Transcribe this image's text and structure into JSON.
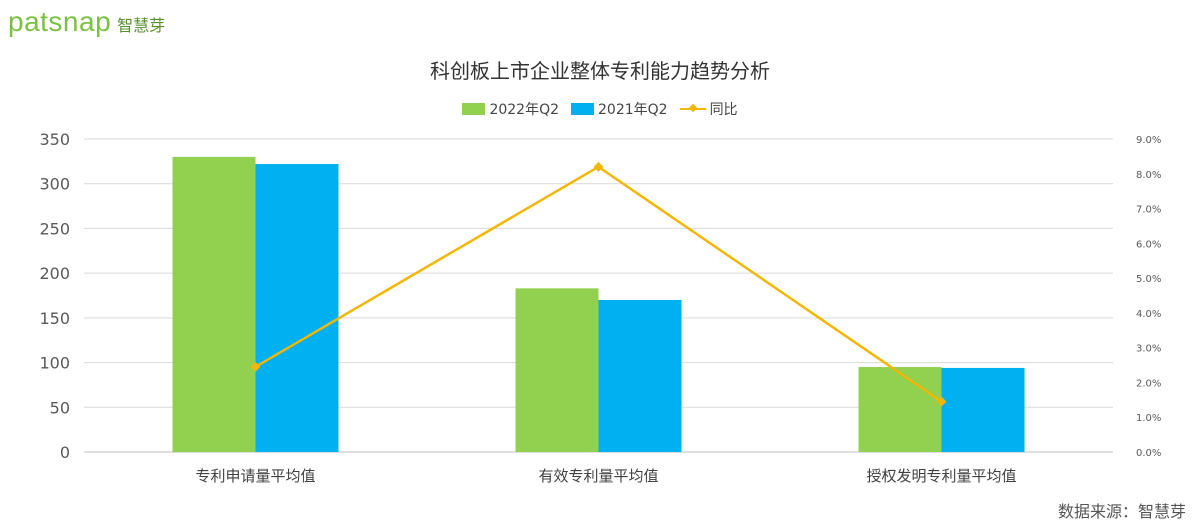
{
  "brand": {
    "logo_word": "patsnap",
    "logo_cn": "智慧芽"
  },
  "source_note": "数据来源：智慧芽",
  "colors": {
    "series_2022": "#92d050",
    "series_2021": "#00b0f0",
    "yoy_line": "#f2b705",
    "grid": "#d9d9d9"
  },
  "chart_data": {
    "type": "bar",
    "title": "科创板上市企业整体专利能力趋势分析",
    "categories": [
      "专利申请量平均值",
      "有效专利量平均值",
      "授权发明专利量平均值"
    ],
    "series": [
      {
        "name": "2022年Q2",
        "type": "bar",
        "axis": "left",
        "values": [
          330,
          183,
          95
        ]
      },
      {
        "name": "2021年Q2",
        "type": "bar",
        "axis": "left",
        "values": [
          322,
          170,
          94
        ]
      },
      {
        "name": "同比",
        "type": "line",
        "axis": "right",
        "values": [
          2.45,
          8.2,
          1.45
        ]
      }
    ],
    "y_left": {
      "min": 0,
      "max": 350,
      "step": 50,
      "ticks": [
        "0",
        "50",
        "100",
        "150",
        "200",
        "250",
        "300",
        "350"
      ]
    },
    "y_right": {
      "min": 0,
      "max": 9,
      "step": 1,
      "ticks": [
        "0.0%",
        "1.0%",
        "2.0%",
        "3.0%",
        "4.0%",
        "5.0%",
        "6.0%",
        "7.0%",
        "8.0%",
        "9.0%"
      ]
    },
    "grid": true,
    "legend_position": "top"
  }
}
